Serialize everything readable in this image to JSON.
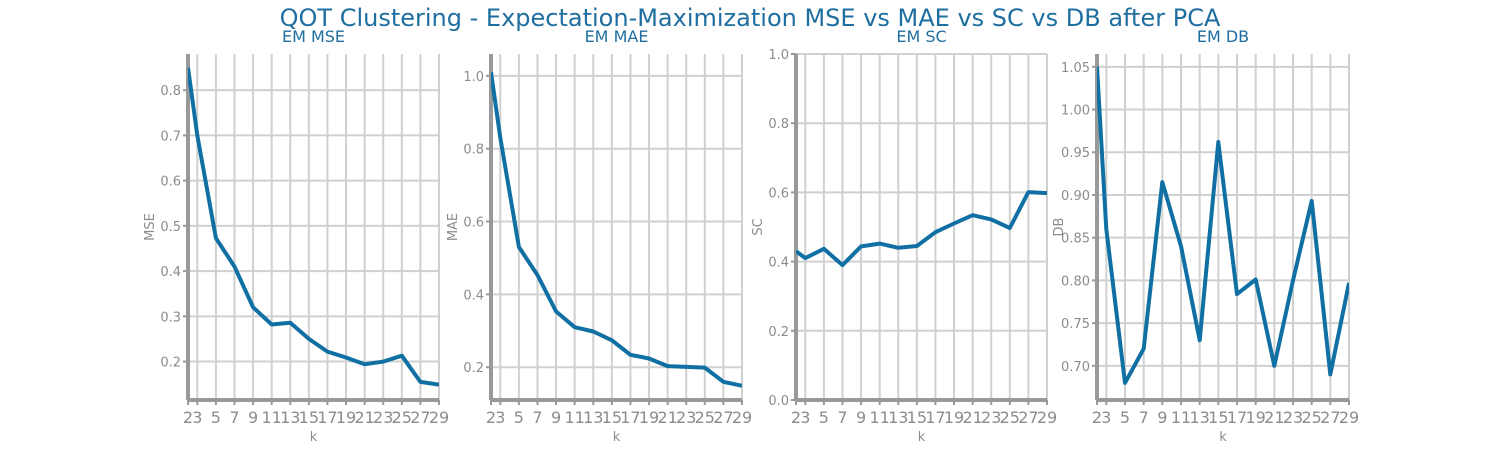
{
  "suptitle": "QOT Clustering - Expectation-Maximization MSE vs MAE vs SC vs DB after PCA",
  "colors": {
    "line": "#1170a3",
    "grid": "#d0d0d0",
    "axis": "#999999",
    "title": "#1f6ea0",
    "tick": "#8c8c8c"
  },
  "chart_data": [
    {
      "type": "line",
      "title": "EM MSE",
      "xlabel": "k",
      "ylabel": "MSE",
      "xlim": [
        2,
        29
      ],
      "ylim": [
        0.115,
        0.88
      ],
      "yticks": [
        0.2,
        0.3,
        0.4,
        0.5,
        0.6,
        0.7,
        0.8
      ],
      "ytick_labels": [
        "0.2",
        "0.3",
        "0.4",
        "0.5",
        "0.6",
        "0.7",
        "0.8"
      ],
      "xticks": [
        2,
        3,
        5,
        7,
        9,
        11,
        13,
        15,
        17,
        19,
        21,
        23,
        25,
        27,
        29
      ],
      "xtick_labels": [
        "2",
        "3",
        "5",
        "7",
        "9",
        "11",
        "13",
        "15",
        "17",
        "19",
        "21",
        "23",
        "25",
        "27",
        "29"
      ],
      "grid": true,
      "x": [
        2,
        3,
        5,
        7,
        9,
        11,
        13,
        15,
        17,
        19,
        21,
        23,
        25,
        27,
        29
      ],
      "y": [
        0.85,
        0.7,
        0.473,
        0.41,
        0.32,
        0.282,
        0.286,
        0.25,
        0.222,
        0.209,
        0.194,
        0.2,
        0.213,
        0.155,
        0.149
      ]
    },
    {
      "type": "line",
      "title": "EM MAE",
      "xlabel": "k",
      "ylabel": "MAE",
      "xlim": [
        2,
        29
      ],
      "ylim": [
        0.11,
        1.06
      ],
      "yticks": [
        0.2,
        0.4,
        0.6,
        0.8,
        1.0
      ],
      "ytick_labels": [
        "0.2",
        "0.4",
        "0.6",
        "0.8",
        "1.0"
      ],
      "xticks": [
        2,
        3,
        5,
        7,
        9,
        11,
        13,
        15,
        17,
        19,
        21,
        23,
        25,
        27,
        29
      ],
      "xtick_labels": [
        "2",
        "3",
        "5",
        "7",
        "9",
        "11",
        "13",
        "15",
        "17",
        "19",
        "21",
        "23",
        "25",
        "27",
        "29"
      ],
      "grid": true,
      "x": [
        2,
        3,
        5,
        7,
        9,
        11,
        13,
        15,
        17,
        19,
        21,
        23,
        25,
        27,
        29
      ],
      "y": [
        1.01,
        0.83,
        0.53,
        0.453,
        0.353,
        0.31,
        0.298,
        0.274,
        0.234,
        0.224,
        0.203,
        0.201,
        0.199,
        0.16,
        0.149
      ]
    },
    {
      "type": "line",
      "title": "EM SC",
      "xlabel": "k",
      "ylabel": "SC",
      "xlim": [
        2,
        29
      ],
      "ylim": [
        0.0,
        1.0
      ],
      "yticks": [
        0.0,
        0.2,
        0.4,
        0.6,
        0.8,
        1.0
      ],
      "ytick_labels": [
        "0.0",
        "0.2",
        "0.4",
        "0.6",
        "0.8",
        "1.0"
      ],
      "xticks": [
        2,
        3,
        5,
        7,
        9,
        11,
        13,
        15,
        17,
        19,
        21,
        23,
        25,
        27,
        29
      ],
      "xtick_labels": [
        "2",
        "3",
        "5",
        "7",
        "9",
        "11",
        "13",
        "15",
        "17",
        "19",
        "21",
        "23",
        "25",
        "27",
        "29"
      ],
      "grid": true,
      "x": [
        2,
        3,
        5,
        7,
        9,
        11,
        13,
        15,
        17,
        19,
        21,
        23,
        25,
        27,
        29
      ],
      "y": [
        0.43,
        0.41,
        0.437,
        0.39,
        0.444,
        0.452,
        0.44,
        0.445,
        0.485,
        0.51,
        0.534,
        0.522,
        0.497,
        0.601,
        0.598
      ]
    },
    {
      "type": "line",
      "title": "EM DB",
      "xlabel": "k",
      "ylabel": "DB",
      "xlim": [
        2,
        29
      ],
      "ylim": [
        0.66,
        1.065
      ],
      "yticks": [
        0.7,
        0.75,
        0.8,
        0.85,
        0.9,
        0.95,
        1.0,
        1.05
      ],
      "ytick_labels": [
        "0.70",
        "0.75",
        "0.80",
        "0.85",
        "0.90",
        "0.95",
        "1.00",
        "1.05"
      ],
      "xticks": [
        2,
        3,
        5,
        7,
        9,
        11,
        13,
        15,
        17,
        19,
        21,
        23,
        25,
        27,
        29
      ],
      "xtick_labels": [
        "2",
        "3",
        "5",
        "7",
        "9",
        "11",
        "13",
        "15",
        "17",
        "19",
        "21",
        "23",
        "25",
        "27",
        "29"
      ],
      "grid": true,
      "x": [
        2,
        3,
        5,
        7,
        9,
        11,
        13,
        15,
        17,
        19,
        21,
        23,
        25,
        27,
        29
      ],
      "y": [
        1.05,
        0.86,
        0.68,
        0.72,
        0.915,
        0.84,
        0.73,
        0.962,
        0.784,
        0.801,
        0.7,
        0.8,
        0.893,
        0.69,
        0.797
      ]
    }
  ]
}
